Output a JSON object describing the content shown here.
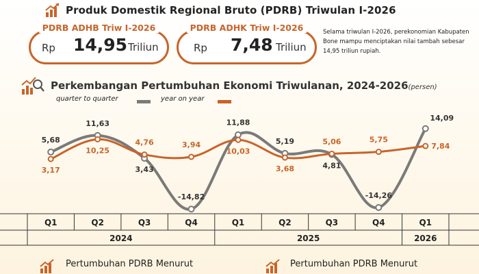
{
  "header": {
    "title": "Produk Domestik Regional Bruto (PDRB) Triwulan I-2026"
  },
  "stats": [
    {
      "label": "PDRB ADHB Triw I-2026",
      "currency": "Rp",
      "value": "14,95",
      "unit": "Triliun"
    },
    {
      "label": "PDRB ADHK Triw I-2026",
      "currency": "Rp",
      "value": "7,48",
      "unit": "Triliun"
    }
  ],
  "description": "Selama triwulan I-2026, perekonomian Kabupaten Bone mampu menciptakan nilai tambah sebesar 14,95 triliun rupiah.",
  "chart": {
    "title": "Perkembangan Pertumbuhan Ekonomi Triwulanan, 2024-2026",
    "unit": "(persen)"
  },
  "colors": {
    "accent": "#c8642a",
    "qtq": "#7a7a7a",
    "yoy": "#c8642a"
  },
  "chart_data": {
    "type": "line",
    "title": "Perkembangan Pertumbuhan Ekonomi Triwulanan, 2024-2026",
    "unit": "persen",
    "categories": [
      "Q1",
      "Q2",
      "Q3",
      "Q4",
      "Q1",
      "Q2",
      "Q3",
      "Q4",
      "Q1"
    ],
    "years": [
      {
        "label": "2024",
        "span": 4
      },
      {
        "label": "2025",
        "span": 4
      },
      {
        "label": "2026",
        "span": 1
      }
    ],
    "series": [
      {
        "name": "quarter to quarter",
        "values": [
          5.68,
          11.63,
          3.43,
          -14.82,
          11.88,
          5.19,
          4.81,
          -14.26,
          14.09
        ],
        "labels": [
          "5,68",
          "11,63",
          "3,43",
          "-14,82",
          "11,88",
          "5,19",
          "4,81",
          "-14,26",
          "14,09"
        ]
      },
      {
        "name": "year on year",
        "values": [
          3.17,
          10.25,
          4.76,
          3.94,
          10.03,
          3.68,
          5.06,
          5.75,
          7.84
        ],
        "labels": [
          "3,17",
          "10,25",
          "4,76",
          "3,94",
          "10,03",
          "3,68",
          "5,06",
          "5,75",
          "7,84"
        ]
      }
    ],
    "ylim": [
      -16,
      16
    ],
    "grid": false,
    "legend": "top-left"
  },
  "bottom": {
    "left_title": "Pertumbuhan PDRB Menurut",
    "right_title": "Pertumbuhan PDRB Menurut"
  }
}
